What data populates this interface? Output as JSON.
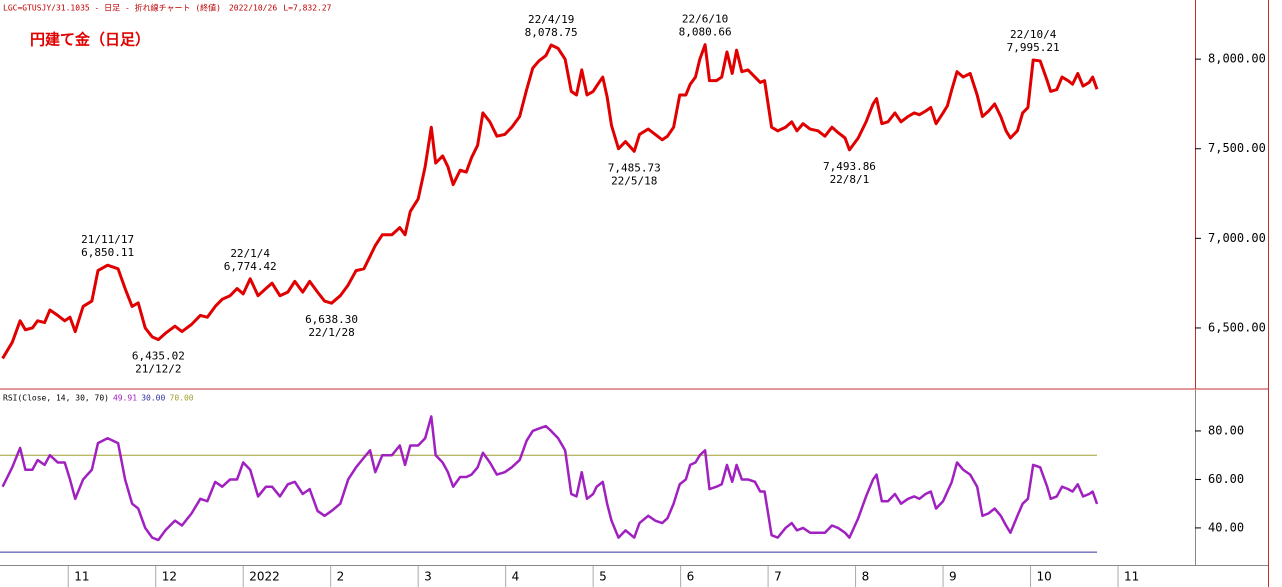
{
  "chart_data": [
    {
      "type": "line",
      "title": "円建て金（日足）",
      "header": "LGC=GTUSJY/31.1035 - 日足 - 折れ線チャート (終値)",
      "date": "2022/10/26",
      "last_label": "L=7,832.27",
      "xlim": [
        10.22,
        23.88
      ],
      "ylim": [
        6165,
        8330
      ],
      "yticks": [
        {
          "value": 6500,
          "label": "6,500.00"
        },
        {
          "value": 7000,
          "label": "7,000.00"
        },
        {
          "value": 7500,
          "label": "7,500.00"
        },
        {
          "value": 8000,
          "label": "8,000.00"
        }
      ],
      "x": [
        10.25,
        10.36,
        10.45,
        10.51,
        10.59,
        10.65,
        10.73,
        10.79,
        10.88,
        10.96,
        11.02,
        11.08,
        11.17,
        11.27,
        11.34,
        11.45,
        11.57,
        11.65,
        11.73,
        11.8,
        11.88,
        11.96,
        12.03,
        12.11,
        12.22,
        12.3,
        12.41,
        12.51,
        12.59,
        12.68,
        12.76,
        12.85,
        12.93,
        13.0,
        13.08,
        13.17,
        13.26,
        13.33,
        13.42,
        13.51,
        13.59,
        13.68,
        13.76,
        13.85,
        13.93,
        14.01,
        14.11,
        14.2,
        14.29,
        14.38,
        14.45,
        14.51,
        14.59,
        14.7,
        14.79,
        14.85,
        14.91,
        15.0,
        15.08,
        15.15,
        15.2,
        15.28,
        15.34,
        15.4,
        15.48,
        15.55,
        15.61,
        15.68,
        15.74,
        15.82,
        15.9,
        15.99,
        16.07,
        16.16,
        16.24,
        16.31,
        16.38,
        16.46,
        16.52,
        16.6,
        16.68,
        16.75,
        16.81,
        16.87,
        16.93,
        17.0,
        17.04,
        17.11,
        17.16,
        17.21,
        17.29,
        17.37,
        17.47,
        17.53,
        17.63,
        17.71,
        17.79,
        17.85,
        17.92,
        17.99,
        18.06,
        18.11,
        18.17,
        18.22,
        18.28,
        18.33,
        18.41,
        18.47,
        18.53,
        18.59,
        18.64,
        18.7,
        18.77,
        18.85,
        18.91,
        18.96,
        19.04,
        19.11,
        19.2,
        19.27,
        19.33,
        19.4,
        19.48,
        19.57,
        19.65,
        19.73,
        19.8,
        19.88,
        19.93,
        20.03,
        20.12,
        20.2,
        20.24,
        20.3,
        20.37,
        20.45,
        20.52,
        20.6,
        20.67,
        20.73,
        20.8,
        20.86,
        20.92,
        21.0,
        21.05,
        21.1,
        21.16,
        21.23,
        21.31,
        21.39,
        21.45,
        21.52,
        21.59,
        21.66,
        21.72,
        21.77,
        21.85,
        21.91,
        21.97,
        22.03,
        22.11,
        22.19,
        22.23,
        22.3,
        22.36,
        22.43,
        22.48,
        22.54,
        22.6,
        22.67,
        22.71,
        22.76
      ],
      "series": [
        {
          "color": "#e00000",
          "values": [
            6330,
            6420,
            6540,
            6490,
            6500,
            6540,
            6530,
            6600,
            6570,
            6540,
            6560,
            6480,
            6620,
            6650,
            6820,
            6850.11,
            6830,
            6720,
            6620,
            6640,
            6500,
            6450,
            6435.02,
            6470,
            6510,
            6480,
            6520,
            6570,
            6560,
            6620,
            6660,
            6680,
            6720,
            6690,
            6774.42,
            6680,
            6720,
            6750,
            6680,
            6700,
            6760,
            6700,
            6760,
            6700,
            6650,
            6638.3,
            6680,
            6740,
            6820,
            6830,
            6900,
            6960,
            7020,
            7020,
            7060,
            7020,
            7150,
            7220,
            7400,
            7620,
            7420,
            7460,
            7400,
            7300,
            7380,
            7370,
            7450,
            7520,
            7700,
            7650,
            7570,
            7580,
            7620,
            7680,
            7830,
            7950,
            7990,
            8020,
            8078.75,
            8060,
            8000,
            7820,
            7800,
            7940,
            7800,
            7820,
            7850,
            7900,
            7790,
            7630,
            7500,
            7540,
            7485.73,
            7580,
            7610,
            7580,
            7550,
            7570,
            7620,
            7800,
            7800,
            7860,
            7900,
            8000,
            8080.66,
            7880,
            7880,
            7900,
            8040,
            7920,
            8050,
            7930,
            7940,
            7900,
            7870,
            7880,
            7620,
            7600,
            7620,
            7650,
            7600,
            7640,
            7610,
            7600,
            7570,
            7620,
            7590,
            7560,
            7493.86,
            7560,
            7650,
            7750,
            7780,
            7640,
            7650,
            7700,
            7650,
            7680,
            7700,
            7690,
            7710,
            7730,
            7640,
            7700,
            7740,
            7830,
            7930,
            7900,
            7920,
            7800,
            7680,
            7710,
            7750,
            7680,
            7600,
            7560,
            7600,
            7700,
            7730,
            7995.21,
            7990,
            7880,
            7820,
            7830,
            7900,
            7880,
            7860,
            7920,
            7850,
            7870,
            7900,
            7832.27
          ]
        }
      ],
      "annotations": [
        {
          "date": "21/11/17",
          "x": 11.45,
          "value": 6850.11,
          "label": "6,850.11",
          "side": "above"
        },
        {
          "date": "21/12/2",
          "x": 12.03,
          "value": 6435.02,
          "label": "6,435.02",
          "side": "below"
        },
        {
          "date": "22/1/4",
          "x": 13.08,
          "value": 6774.42,
          "label": "6,774.42",
          "side": "above"
        },
        {
          "date": "22/1/28",
          "x": 14.01,
          "value": 6638.3,
          "label": "6,638.30",
          "side": "below"
        },
        {
          "date": "22/4/19",
          "x": 16.52,
          "value": 8078.75,
          "label": "8,078.75",
          "side": "above"
        },
        {
          "date": "22/5/18",
          "x": 17.47,
          "value": 7485.73,
          "label": "7,485.73",
          "side": "below"
        },
        {
          "date": "22/6/10",
          "x": 18.28,
          "value": 8080.66,
          "label": "8,080.66",
          "side": "above"
        },
        {
          "date": "22/8/1",
          "x": 19.93,
          "value": 7493.86,
          "label": "7,493.86",
          "side": "below"
        },
        {
          "date": "22/10/4",
          "x": 22.03,
          "value": 7995.21,
          "label": "7,995.21",
          "side": "above"
        }
      ]
    },
    {
      "type": "line",
      "indicator": "RSI(Close, 14, 30, 70)",
      "readouts": [
        {
          "value": 49.91,
          "label": "49.91",
          "color": "#a020c0"
        },
        {
          "value": 30,
          "label": "30.00",
          "color": "#3030a0"
        },
        {
          "value": 70,
          "label": "70.00",
          "color": "#a0a030"
        }
      ],
      "ref_lines": [
        {
          "value": 70,
          "color": "#a0a030"
        },
        {
          "value": 30,
          "color": "#3030a0"
        }
      ],
      "xlim": [
        10.22,
        23.88
      ],
      "ylim": [
        24.7,
        96.9
      ],
      "yticks": [
        {
          "value": 40,
          "label": "40.00"
        },
        {
          "value": 60,
          "label": "60.00"
        },
        {
          "value": 80,
          "label": "80.00"
        }
      ],
      "xticks": [
        {
          "value": 11,
          "label": "11"
        },
        {
          "value": 12,
          "label": "12"
        },
        {
          "value": 13,
          "label": "2022"
        },
        {
          "value": 14,
          "label": "2"
        },
        {
          "value": 15,
          "label": "3"
        },
        {
          "value": 16,
          "label": "4"
        },
        {
          "value": 17,
          "label": "5"
        },
        {
          "value": 18,
          "label": "6"
        },
        {
          "value": 19,
          "label": "7"
        },
        {
          "value": 20,
          "label": "8"
        },
        {
          "value": 21,
          "label": "9"
        },
        {
          "value": 22,
          "label": "10"
        },
        {
          "value": 23,
          "label": "11"
        }
      ],
      "x": [
        10.25,
        10.36,
        10.45,
        10.51,
        10.59,
        10.65,
        10.73,
        10.79,
        10.88,
        10.96,
        11.02,
        11.08,
        11.17,
        11.27,
        11.34,
        11.45,
        11.57,
        11.65,
        11.73,
        11.8,
        11.88,
        11.96,
        12.03,
        12.11,
        12.22,
        12.3,
        12.41,
        12.51,
        12.59,
        12.68,
        12.76,
        12.85,
        12.93,
        13.0,
        13.08,
        13.17,
        13.26,
        13.33,
        13.42,
        13.51,
        13.59,
        13.68,
        13.76,
        13.85,
        13.93,
        14.01,
        14.11,
        14.2,
        14.29,
        14.38,
        14.45,
        14.51,
        14.59,
        14.7,
        14.79,
        14.85,
        14.91,
        15.0,
        15.08,
        15.15,
        15.2,
        15.28,
        15.34,
        15.4,
        15.48,
        15.55,
        15.61,
        15.68,
        15.74,
        15.82,
        15.9,
        15.99,
        16.07,
        16.16,
        16.24,
        16.31,
        16.38,
        16.46,
        16.52,
        16.6,
        16.68,
        16.75,
        16.81,
        16.87,
        16.93,
        17.0,
        17.04,
        17.11,
        17.16,
        17.21,
        17.29,
        17.37,
        17.47,
        17.53,
        17.63,
        17.71,
        17.79,
        17.85,
        17.92,
        17.99,
        18.06,
        18.11,
        18.17,
        18.22,
        18.28,
        18.33,
        18.41,
        18.47,
        18.53,
        18.59,
        18.64,
        18.7,
        18.77,
        18.85,
        18.91,
        18.96,
        19.04,
        19.11,
        19.2,
        19.27,
        19.33,
        19.4,
        19.48,
        19.57,
        19.65,
        19.73,
        19.8,
        19.88,
        19.93,
        20.03,
        20.12,
        20.2,
        20.24,
        20.3,
        20.37,
        20.45,
        20.52,
        20.6,
        20.67,
        20.73,
        20.8,
        20.86,
        20.92,
        21.0,
        21.05,
        21.1,
        21.16,
        21.23,
        21.31,
        21.39,
        21.45,
        21.52,
        21.59,
        21.66,
        21.72,
        21.77,
        21.85,
        21.91,
        21.97,
        22.03,
        22.11,
        22.19,
        22.23,
        22.3,
        22.36,
        22.43,
        22.48,
        22.54,
        22.6,
        22.67,
        22.71,
        22.76
      ],
      "series": [
        {
          "color": "#a020c0",
          "values": [
            57,
            65,
            73,
            64,
            64,
            68,
            66,
            70,
            67,
            67,
            60,
            52,
            60,
            64,
            75,
            77,
            75,
            60,
            50,
            48,
            40,
            36,
            35,
            39,
            43,
            41,
            46,
            52,
            51,
            59,
            57,
            60,
            60,
            67,
            64,
            53,
            57,
            57,
            53,
            58,
            59,
            54,
            56,
            47,
            45,
            47,
            50,
            60,
            65,
            69,
            72,
            63,
            70,
            70,
            74,
            66,
            74,
            74,
            77,
            86,
            70,
            67,
            63,
            57,
            61,
            61,
            62,
            65,
            71,
            67,
            62,
            63,
            65,
            68,
            76,
            80,
            81,
            82,
            80,
            77,
            72,
            54,
            53,
            63,
            52,
            54,
            57,
            59,
            50,
            43,
            36,
            39,
            36,
            42,
            45,
            43,
            42,
            44,
            50,
            58,
            60,
            66,
            67,
            70,
            72,
            56,
            57,
            58,
            66,
            59,
            66,
            60,
            60,
            59,
            55,
            55,
            37,
            36,
            40,
            42,
            39,
            40,
            38,
            38,
            38,
            41,
            40,
            38,
            36,
            44,
            53,
            60,
            62,
            51,
            51,
            54,
            50,
            52,
            53,
            52,
            54,
            55,
            48,
            51,
            55,
            59,
            67,
            64,
            62,
            57,
            45,
            46,
            48,
            45,
            41,
            38,
            45,
            50,
            52,
            66,
            65,
            57,
            52,
            53,
            57,
            56,
            55,
            58,
            53,
            54,
            55,
            49.91
          ]
        }
      ]
    }
  ]
}
